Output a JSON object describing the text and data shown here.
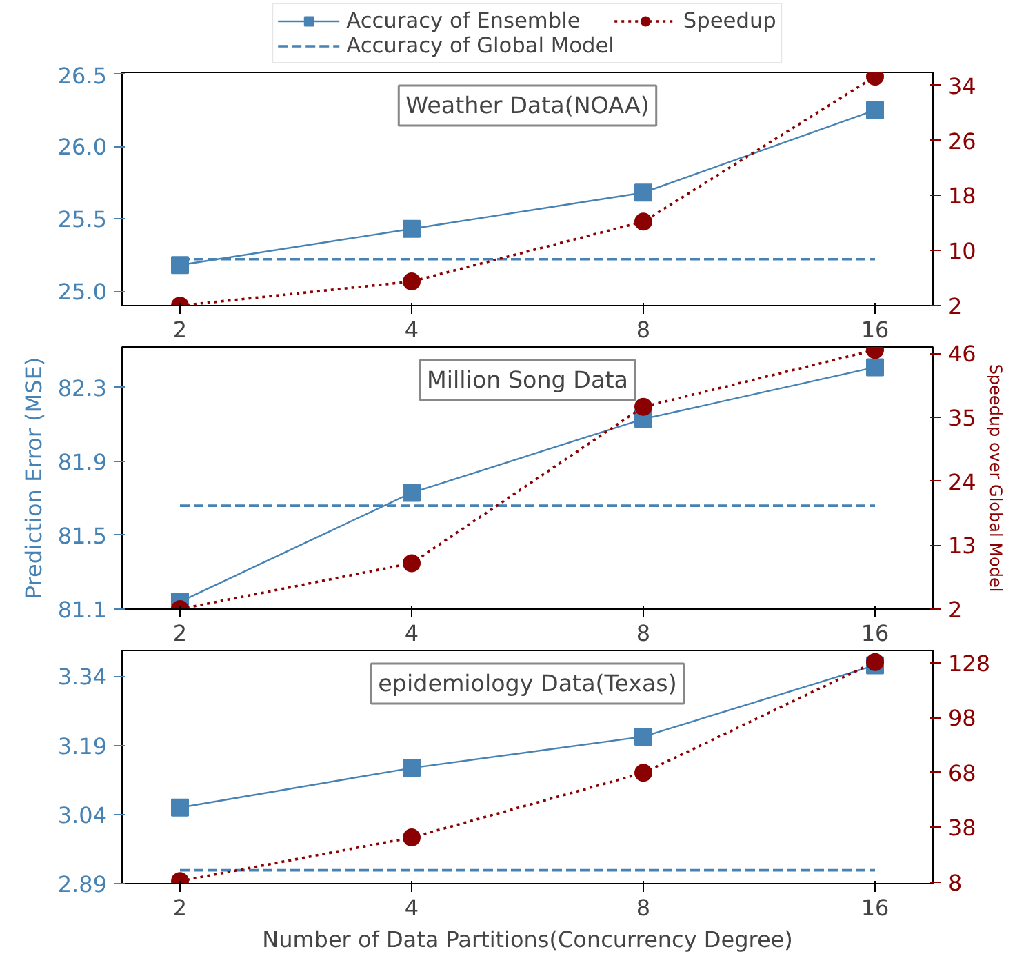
{
  "chart_data": [
    {
      "type": "line",
      "title": "Weather Data(NOAA)",
      "categories": [
        "2",
        "4",
        "8",
        "16"
      ],
      "legend": "top",
      "grid": false,
      "ylim": [
        24.9,
        26.51
      ],
      "yticks": [
        {
          "value": 25,
          "label": "25.0"
        },
        25.5,
        {
          "value": 26,
          "label": "26.0"
        },
        26.5
      ],
      "y2lim": [
        2,
        35.9
      ],
      "y2ticks": [
        2,
        10,
        18,
        26,
        34
      ],
      "series": [
        {
          "name": "Accuracy of Ensemble",
          "color": "#4682b4",
          "marker": "square",
          "line_style": "solid",
          "values": [
            25.18,
            25.43,
            25.68,
            26.25
          ]
        },
        {
          "name": "Accuracy of Global Model",
          "color": "#4682b4",
          "marker": "none",
          "line_style": "dashed",
          "values": [
            25.22,
            25.22,
            25.22,
            25.22
          ]
        },
        {
          "name": "Speedup",
          "color": "#8b0000",
          "marker": "circle",
          "line_style": "dotted",
          "axis": "y2",
          "values": [
            2,
            5.5,
            14.2,
            35.3
          ]
        }
      ]
    },
    {
      "type": "line",
      "title": "Million Song Data",
      "categories": [
        "2",
        "4",
        "8",
        "16"
      ],
      "grid": false,
      "ylabel": "Prediction Error (MSE)",
      "y2label": "Speedup over Global Model",
      "ylim": [
        81.1,
        82.52
      ],
      "yticks": [
        81.1,
        81.5,
        81.9,
        82.3
      ],
      "y2lim": [
        2,
        47.1
      ],
      "y2ticks": [
        2,
        13,
        24,
        35,
        46
      ],
      "series": [
        {
          "color": "#4682b4",
          "marker": "square",
          "line_style": "solid",
          "values": [
            81.14,
            81.73,
            82.13,
            82.41
          ]
        },
        {
          "color": "#4682b4",
          "marker": "none",
          "line_style": "dashed",
          "values": [
            81.66,
            81.66,
            81.66,
            81.66
          ]
        },
        {
          "color": "#8b0000",
          "marker": "circle",
          "line_style": "dotted",
          "axis": "y2",
          "values": [
            2,
            9.9,
            36.8,
            46.6
          ]
        }
      ]
    },
    {
      "type": "line",
      "title": "epidemiology Data(Texas)",
      "categories": [
        "2",
        "4",
        "8",
        "16"
      ],
      "grid": false,
      "xlabel": "Number of Data Partitions(Concurrency Degree)",
      "ylim": [
        2.89,
        3.396
      ],
      "yticks": [
        2.89,
        3.04,
        3.19,
        3.34
      ],
      "y2lim": [
        7.3,
        134.6
      ],
      "y2ticks": [
        8,
        38,
        68,
        98,
        128
      ],
      "series": [
        {
          "color": "#4682b4",
          "marker": "square",
          "line_style": "solid",
          "values": [
            3.055,
            3.141,
            3.209,
            3.364
          ]
        },
        {
          "color": "#4682b4",
          "marker": "none",
          "line_style": "dashed",
          "values": [
            2.919,
            2.919,
            2.919,
            2.919
          ]
        },
        {
          "color": "#8b0000",
          "marker": "circle",
          "line_style": "dotted",
          "axis": "y2",
          "values": [
            8.7,
            32.5,
            67.8,
            128.3
          ]
        }
      ]
    }
  ]
}
